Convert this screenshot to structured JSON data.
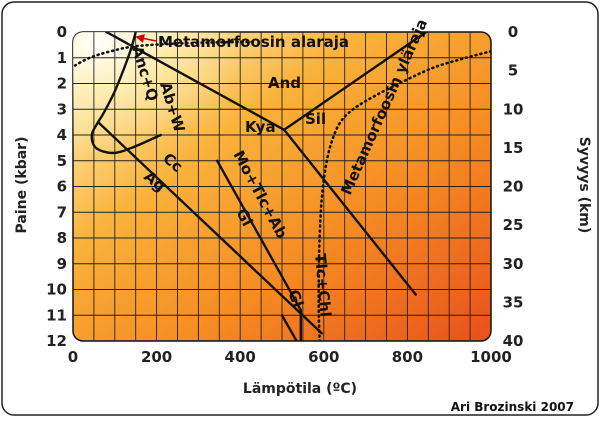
{
  "chart_data": {
    "type": "phase-diagram",
    "xlabel": "Lämpötila (ºC)",
    "ylabel_left": "Paine (kbar)",
    "ylabel_right": "Syvyys (km)",
    "x_ticks": [
      0,
      200,
      400,
      600,
      800,
      1000
    ],
    "y_left_ticks": [
      0,
      1,
      2,
      3,
      4,
      5,
      6,
      7,
      8,
      9,
      10,
      11,
      12
    ],
    "y_right_ticks": [
      0,
      5,
      10,
      15,
      20,
      25,
      30,
      35,
      40
    ],
    "xlim": [
      0,
      1000
    ],
    "ylim_kbar": [
      0,
      12
    ],
    "grid": true,
    "labels": {
      "meta_lower": "Metamorfoosin alaraja",
      "meta_upper": "Metamorfoosin yläraja",
      "and": "And",
      "kya": "Kya",
      "sil": "Sil",
      "anc": "Anc+Q",
      "abw": "Ab+W",
      "cc": "Cc",
      "ag": "Ag",
      "mo": "Mo+Tlc+Ab",
      "gl1": "Gl",
      "gl2": "Gl",
      "tlc": "Tlc+Chl"
    },
    "credit": "Ari Brozinski 2007",
    "boundaries": [
      {
        "name": "Kya-And",
        "points": [
          [
            80,
            0
          ],
          [
            505,
            3.8
          ]
        ]
      },
      {
        "name": "And-Sil",
        "points": [
          [
            505,
            3.8
          ],
          [
            845,
            0
          ]
        ]
      },
      {
        "name": "Kya-Sil",
        "points": [
          [
            505,
            3.8
          ],
          [
            820,
            10.2
          ]
        ]
      },
      {
        "name": "Cc-Ag",
        "points": [
          [
            60,
            3.5
          ],
          [
            595,
            11.7
          ]
        ]
      },
      {
        "name": "Mo+Tlc+Ab-Gl",
        "points": [
          [
            345,
            5.0
          ],
          [
            545,
            10.8
          ]
        ]
      },
      {
        "name": "Gl",
        "points": [
          [
            500,
            11.0
          ],
          [
            535,
            12.0
          ]
        ]
      },
      {
        "name": "Tlc+Chl",
        "points": [
          [
            545,
            10.8
          ],
          [
            545,
            12.0
          ]
        ]
      }
    ],
    "curves": [
      {
        "name": "Anc+Q / Ab+W",
        "points": [
          [
            150,
            0
          ],
          [
            138,
            0.7
          ],
          [
            120,
            1.5
          ],
          [
            100,
            2.3
          ],
          [
            75,
            3.1
          ],
          [
            60,
            3.5
          ],
          [
            45,
            4.0
          ],
          [
            55,
            4.5
          ],
          [
            95,
            4.7
          ],
          [
            140,
            4.5
          ],
          [
            210,
            4.0
          ]
        ]
      }
    ],
    "dotted_curves": [
      {
        "name": "Metamorfoosin alaraja",
        "points": [
          [
            5,
            1.3
          ],
          [
            40,
            1.0
          ],
          [
            90,
            0.75
          ],
          [
            150,
            0.55
          ],
          [
            250,
            0.45
          ],
          [
            350,
            0.4
          ],
          [
            430,
            0.38
          ]
        ]
      },
      {
        "name": "Metamorfoosin yläraja",
        "points": [
          [
            1000,
            0.75
          ],
          [
            940,
            1.0
          ],
          [
            860,
            1.4
          ],
          [
            780,
            2.0
          ],
          [
            720,
            2.5
          ],
          [
            670,
            3.0
          ],
          [
            640,
            3.5
          ],
          [
            620,
            4.2
          ],
          [
            605,
            5.2
          ],
          [
            595,
            6.5
          ],
          [
            590,
            8.0
          ],
          [
            588,
            9.5
          ],
          [
            588,
            11.0
          ],
          [
            590,
            12.0
          ]
        ]
      }
    ]
  }
}
